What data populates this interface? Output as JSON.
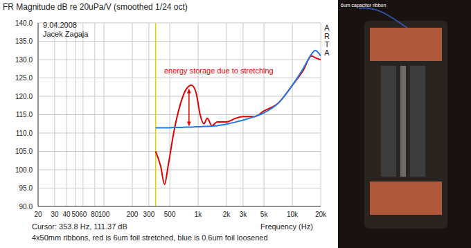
{
  "chart_data": {
    "type": "line",
    "title": "FR Magnitude dB re 20uPa/V (smoothed 1/24 oct)",
    "x_label": "Frequency (Hz)",
    "note": "4x50mm ribbons, red is 6um foil stretched, blue is 0.6um foil loosened",
    "date": "9.04.2008",
    "author": "Jacek Zagaja",
    "side_text": "ARTA",
    "log": "x",
    "grid": true,
    "xlim": [
      20,
      20000
    ],
    "xticks": [
      20,
      30,
      40,
      50,
      60,
      80,
      100,
      200,
      300,
      500,
      {
        "value": 1000,
        "label": "1k"
      },
      {
        "value": 2000,
        "label": "2k"
      },
      {
        "value": 3000,
        "label": "3k"
      },
      {
        "value": 5000,
        "label": "5k"
      },
      {
        "value": 10000,
        "label": "10k"
      },
      {
        "value": 20000,
        "label": "20k"
      }
    ],
    "ylim": [
      90,
      140
    ],
    "yticks": [
      {
        "value": 90,
        "label": "90.0"
      },
      {
        "value": 95,
        "label": "95.0"
      },
      {
        "value": 100,
        "label": "100.0"
      },
      {
        "value": 105,
        "label": "105.0"
      },
      {
        "value": 110,
        "label": "110.0"
      },
      {
        "value": 115,
        "label": "115.0"
      },
      {
        "value": 120,
        "label": "120.0"
      },
      {
        "value": 125,
        "label": "125.0"
      },
      {
        "value": 130,
        "label": "130.0"
      },
      {
        "value": 135,
        "label": "135.0"
      },
      {
        "value": 140,
        "label": "140.0"
      }
    ],
    "x": [
      353.8,
      400,
      440,
      480,
      550,
      650,
      750,
      850,
      950,
      1050,
      1150,
      1250,
      1400,
      1600,
      1800,
      2000,
      2500,
      3000,
      4000,
      5000,
      7000,
      10000,
      13000,
      16000,
      17500,
      20000
    ],
    "series": [
      {
        "name": "6um foil stretched",
        "color": "#e00000",
        "values": [
          105,
          101,
          96,
          101,
          110,
          118,
          122,
          123,
          121,
          115,
          112.5,
          114,
          112,
          113,
          113,
          113,
          114,
          114.5,
          114.5,
          116,
          118,
          123,
          127,
          131,
          130.5,
          130
        ]
      },
      {
        "name": "0.6um foil loosened",
        "color": "#1e78e6",
        "values": [
          111.4,
          111.4,
          111.4,
          111.4,
          111.5,
          111.5,
          111.6,
          111.6,
          111.7,
          111.7,
          111.8,
          111.8,
          111.9,
          112,
          112.2,
          112.4,
          113,
          113.5,
          114.5,
          115.5,
          118,
          123,
          127.5,
          131.5,
          132.5,
          131
        ]
      }
    ],
    "annotations": [
      {
        "text": "energy storage due to stretching",
        "x": 400,
        "y": 127,
        "color": "#e00000"
      },
      {
        "text": "Cursor: 353.8 Hz, 111.37 dB",
        "x": 353.8,
        "color": "#e0d000"
      }
    ],
    "arrow": {
      "x": 800,
      "y": [
        112,
        122
      ],
      "color": "#e00000"
    },
    "photo_label": "6um capacitor ribbon"
  }
}
